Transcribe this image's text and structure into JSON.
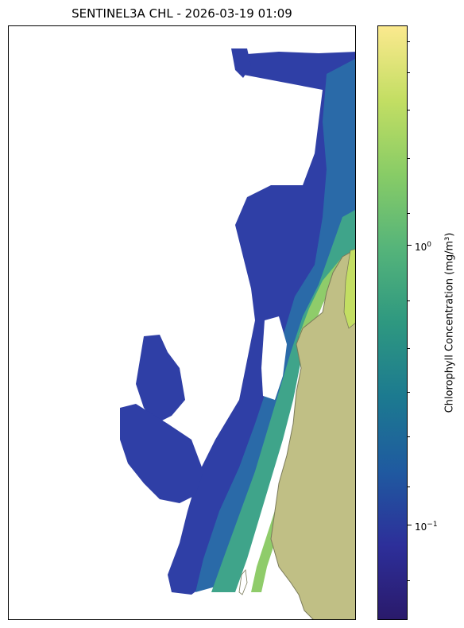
{
  "title": "SENTINEL3A CHL - 2026-03-19 01:09",
  "colorbar": {
    "label": "Chlorophyll Concentration (mg/m³)",
    "scale": "log",
    "range": [
      0.045,
      7.0
    ],
    "ticks": [
      {
        "value": 1.0,
        "base": "10",
        "exp": "0"
      },
      {
        "value": 0.1,
        "base": "10",
        "exp": "−1"
      }
    ],
    "colors": [
      "#2a1a6b",
      "#2d2f9a",
      "#1f5aa0",
      "#1c7a90",
      "#2e9880",
      "#55b47a",
      "#88cc66",
      "#c3de63",
      "#fbe98e"
    ]
  },
  "map_colors": {
    "land": "#c0bf85",
    "coast_edge": "#7a7a5a",
    "water_low": "#2f3fa6",
    "water_mid": "#2a6aa8",
    "water_high": "#3fa48a",
    "water_very_high": "#8fcc6a"
  }
}
